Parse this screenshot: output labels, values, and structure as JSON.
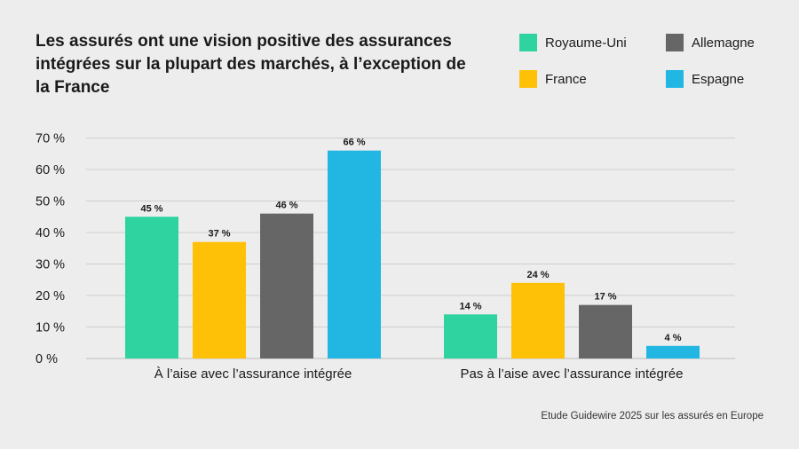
{
  "chart_data": {
    "type": "bar",
    "title": "Les assurés ont une vision positive des assurances intégrées sur la plupart des marchés, à l’exception de la France",
    "categories": [
      "À l’aise avec l’assurance intégrée",
      "Pas à l’aise avec l’assurance intégrée"
    ],
    "series": [
      {
        "name": "Royaume-Uni",
        "color": "#2ed3a0",
        "values": [
          45,
          14
        ],
        "labels": [
          "45 %",
          "14 %"
        ]
      },
      {
        "name": "France",
        "color": "#ffc107",
        "values": [
          37,
          24
        ],
        "labels": [
          "37 %",
          "24 %"
        ]
      },
      {
        "name": "Allemagne",
        "color": "#666666",
        "values": [
          46,
          17
        ],
        "labels": [
          "46 %",
          "17 %"
        ]
      },
      {
        "name": "Espagne",
        "color": "#22b7e3",
        "values": [
          66,
          4
        ],
        "labels": [
          "66 %",
          "4 %"
        ]
      }
    ],
    "y_ticks": [
      0,
      10,
      20,
      30,
      40,
      50,
      60,
      70
    ],
    "y_tick_labels": [
      "0 %",
      "10 %",
      "20 %",
      "30 %",
      "40 %",
      "50 %",
      "60 %",
      "70 %"
    ],
    "ylim": [
      0,
      70
    ],
    "grid": true,
    "legend_position": "top-right"
  },
  "source": "Etude Guidewire 2025 sur les assurés en Europe"
}
